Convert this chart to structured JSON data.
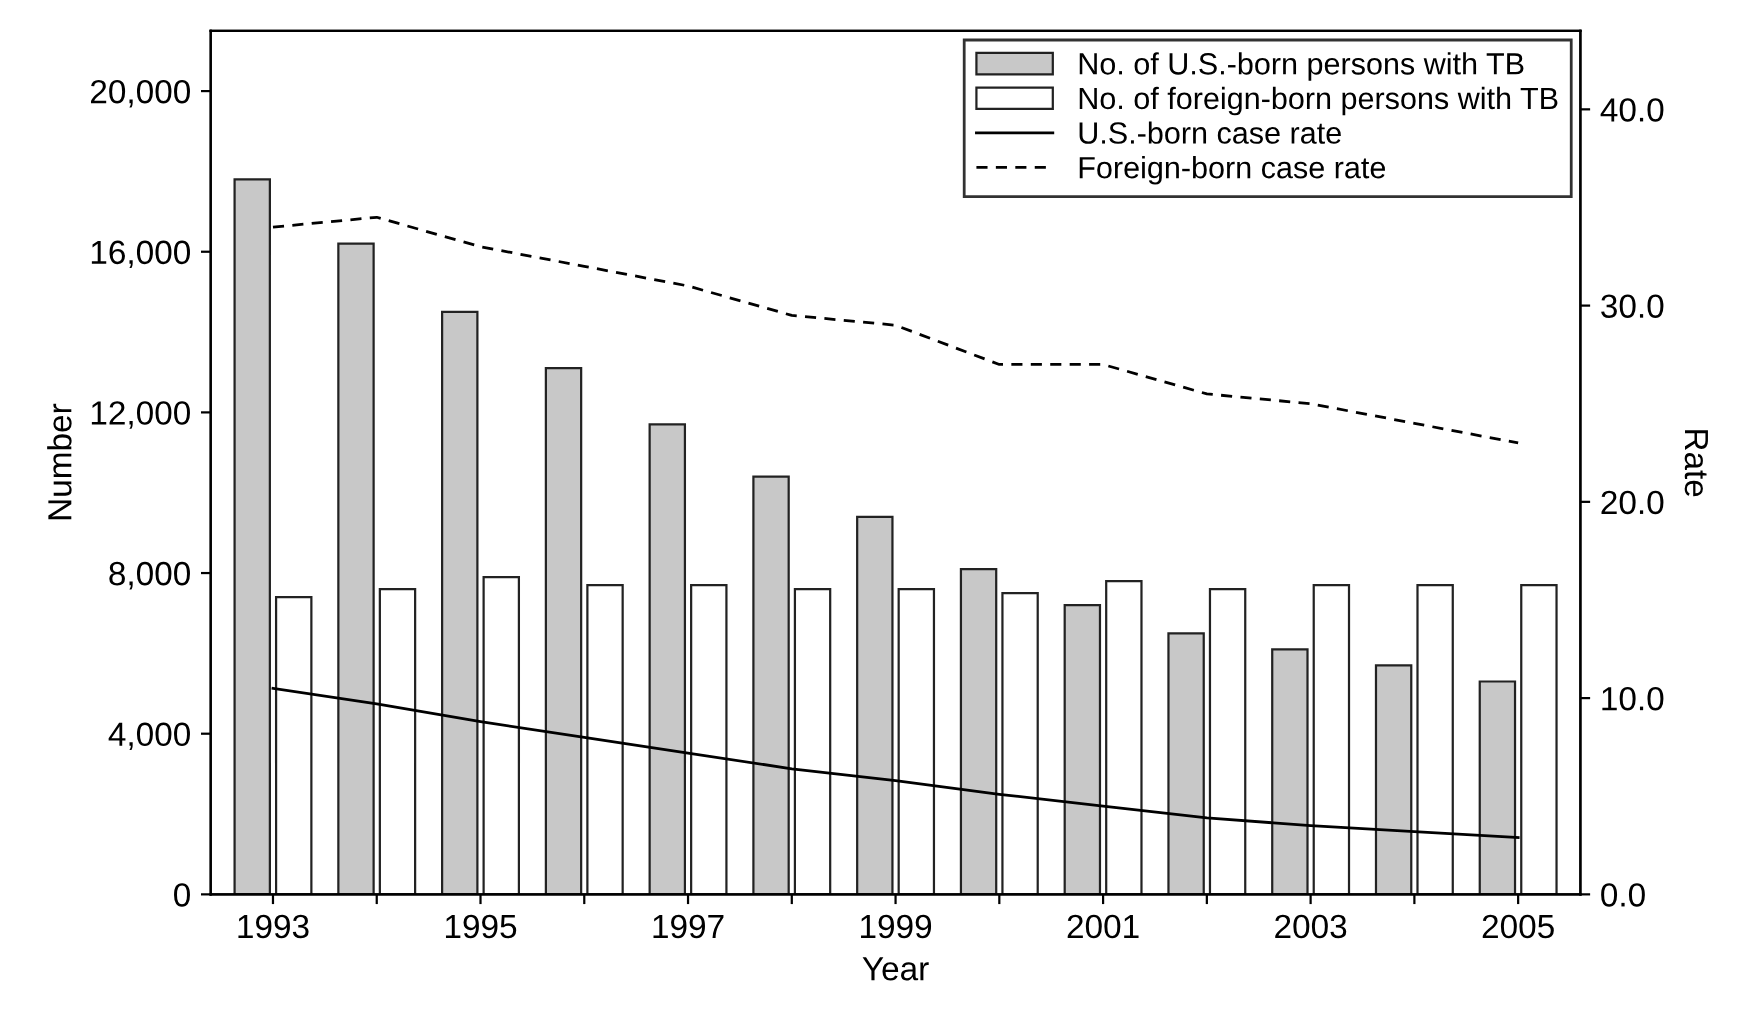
{
  "chart_data": {
    "type": "bar",
    "xlabel": "Year",
    "ylabel": "Number",
    "y2label": "Rate",
    "categories": [
      "1993",
      null,
      "1995",
      null,
      "1997",
      null,
      "1999",
      null,
      "2001",
      null,
      "2003",
      null,
      "2005"
    ],
    "series": [
      {
        "name": "No. of U.S.-born persons with TB",
        "color": "#c8c8c8",
        "values": [
          17800,
          16200,
          14500,
          13100,
          11700,
          10400,
          9400,
          8100,
          7200,
          6500,
          6100,
          5700,
          5300
        ]
      },
      {
        "name": "No. of foreign-born persons with TB",
        "color": "#ffffff",
        "values": [
          7400,
          7600,
          7900,
          7700,
          7700,
          7600,
          7600,
          7500,
          7800,
          7600,
          7700,
          7700,
          7700
        ]
      },
      {
        "name": "U.S.-born case rate",
        "type": "line",
        "axis": "y2",
        "line_style": "solid",
        "color": "#000000",
        "values": [
          10.5,
          9.7,
          8.8,
          8.0,
          7.2,
          6.4,
          5.8,
          5.1,
          4.5,
          3.9,
          3.5,
          3.2,
          2.9
        ]
      },
      {
        "name": "Foreign-born case rate",
        "type": "line",
        "axis": "y2",
        "line_style": "dashed",
        "color": "#000000",
        "values": [
          34.0,
          34.5,
          33.0,
          32.0,
          31.0,
          29.5,
          29.0,
          27.0,
          27.0,
          25.5,
          25.0,
          24.0,
          23.0
        ]
      }
    ],
    "ylim": [
      0,
      21500
    ],
    "yticks": [
      {
        "value": 0,
        "label": "0"
      },
      {
        "value": 4000,
        "label": "4,000"
      },
      {
        "value": 8000,
        "label": "8,000"
      },
      {
        "value": 12000,
        "label": "12,000"
      },
      {
        "value": 16000,
        "label": "16,000"
      },
      {
        "value": 20000,
        "label": "20,000"
      }
    ],
    "y2lim": [
      0,
      44
    ],
    "y2ticks": [
      {
        "value": 0,
        "label": "0.0"
      },
      {
        "value": 10,
        "label": "10.0"
      },
      {
        "value": 20,
        "label": "20.0"
      },
      {
        "value": 30,
        "label": "30.0"
      },
      {
        "value": 40,
        "label": "40.0"
      }
    ],
    "legend": "top right",
    "grid": false,
    "marker": "none"
  }
}
